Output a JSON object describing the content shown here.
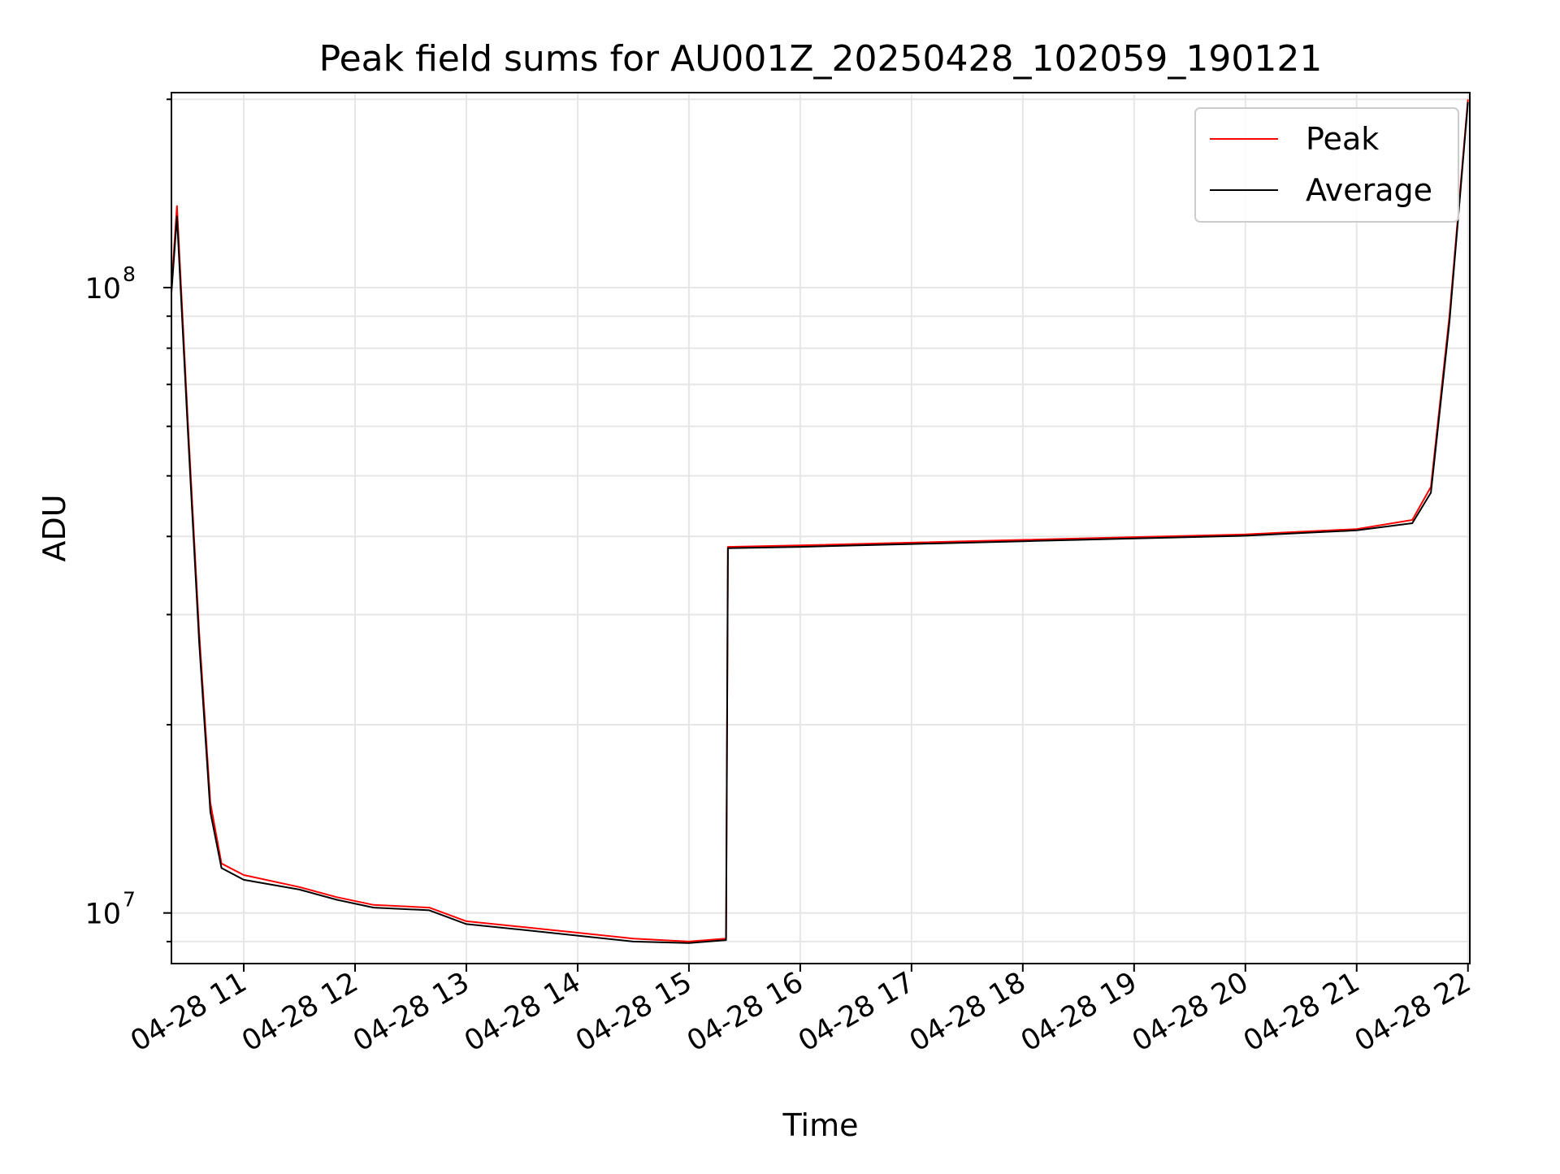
{
  "chart_data": {
    "type": "line",
    "title": "Peak field sums for AU001Z_20250428_102059_190121",
    "xlabel": "Time",
    "ylabel": "ADU",
    "y_scale": "log",
    "ylim": [
      8300000,
      205000000
    ],
    "xlim": [
      "2025-04-28 10:21",
      "2025-04-28 22:01"
    ],
    "grid": true,
    "legend": "top-right",
    "x_ticks": [
      "04-28 11",
      "04-28 12",
      "04-28 13",
      "04-28 14",
      "04-28 15",
      "04-28 16",
      "04-28 17",
      "04-28 18",
      "04-28 19",
      "04-28 20",
      "04-28 21",
      "04-28 22"
    ],
    "y_ticks": [
      {
        "base": "10",
        "exp": "7"
      },
      {
        "base": "10",
        "exp": "8"
      }
    ],
    "series": [
      {
        "name": "Peak",
        "color": "#ff0000",
        "x": [
          "2025-04-28 10:21",
          "2025-04-28 10:24",
          "2025-04-28 10:30",
          "2025-04-28 10:36",
          "2025-04-28 10:42",
          "2025-04-28 10:48",
          "2025-04-28 11:00",
          "2025-04-28 11:30",
          "2025-04-28 11:50",
          "2025-04-28 12:10",
          "2025-04-28 12:40",
          "2025-04-28 13:00",
          "2025-04-28 13:30",
          "2025-04-28 14:00",
          "2025-04-28 14:30",
          "2025-04-28 15:00",
          "2025-04-28 15:20",
          "2025-04-28 15:21",
          "2025-04-28 16:00",
          "2025-04-28 17:00",
          "2025-04-28 18:00",
          "2025-04-28 19:00",
          "2025-04-28 20:00",
          "2025-04-28 21:00",
          "2025-04-28 21:30",
          "2025-04-28 21:40",
          "2025-04-28 21:50",
          "2025-04-28 22:00"
        ],
        "y": [
          100000000,
          135000000,
          60000000,
          28000000,
          15000000,
          12000000,
          11500000,
          11000000,
          10600000,
          10300000,
          10200000,
          9700000,
          9500000,
          9300000,
          9100000,
          9000000,
          9100000,
          38500000,
          38700000,
          39100000,
          39500000,
          39900000,
          40300000,
          41100000,
          42500000,
          48000000,
          90000000,
          200000000
        ]
      },
      {
        "name": "Average",
        "color": "#000000",
        "x": [
          "2025-04-28 10:21",
          "2025-04-28 10:24",
          "2025-04-28 10:30",
          "2025-04-28 10:36",
          "2025-04-28 10:42",
          "2025-04-28 10:48",
          "2025-04-28 11:00",
          "2025-04-28 11:30",
          "2025-04-28 11:50",
          "2025-04-28 12:10",
          "2025-04-28 12:40",
          "2025-04-28 13:00",
          "2025-04-28 13:30",
          "2025-04-28 14:00",
          "2025-04-28 14:30",
          "2025-04-28 15:00",
          "2025-04-28 15:20",
          "2025-04-28 15:21",
          "2025-04-28 16:00",
          "2025-04-28 17:00",
          "2025-04-28 18:00",
          "2025-04-28 19:00",
          "2025-04-28 20:00",
          "2025-04-28 21:00",
          "2025-04-28 21:30",
          "2025-04-28 21:40",
          "2025-04-28 21:50",
          "2025-04-28 22:00"
        ],
        "y": [
          98000000,
          130000000,
          58000000,
          27000000,
          14500000,
          11800000,
          11300000,
          10900000,
          10500000,
          10200000,
          10100000,
          9600000,
          9400000,
          9200000,
          9000000,
          8950000,
          9050000,
          38300000,
          38500000,
          38900000,
          39300000,
          39700000,
          40100000,
          40900000,
          42000000,
          47000000,
          88000000,
          198000000
        ]
      }
    ]
  }
}
